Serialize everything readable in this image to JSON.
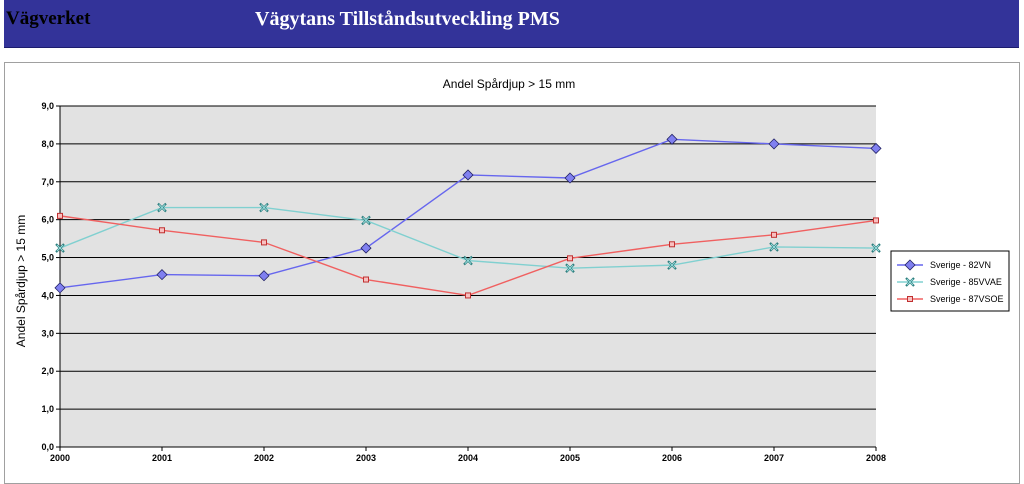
{
  "header": {
    "brand": "Vägverket",
    "title": "Vägytans Tillståndsutveckling PMS"
  },
  "colors": {
    "header_bg": "#333399",
    "plot_bg": "#e2e2e2"
  },
  "chart_data": {
    "type": "line",
    "title": "Andel Spårdjup > 15 mm",
    "xlabel": "",
    "ylabel": "Andel Spårdjup > 15 mm",
    "ylim": [
      0,
      9
    ],
    "y_ticks": [
      "0,0",
      "1,0",
      "2,0",
      "3,0",
      "4,0",
      "5,0",
      "6,0",
      "7,0",
      "8,0",
      "9,0"
    ],
    "grid": true,
    "legend_position": "right",
    "categories": [
      "2000",
      "2001",
      "2002",
      "2003",
      "2004",
      "2005",
      "2006",
      "2007",
      "2008"
    ],
    "series": [
      {
        "name": "Sverige - 82VN",
        "marker": "diamond",
        "color": "#6666ee",
        "marker_color": "#8080f0",
        "values": [
          4.2,
          4.55,
          4.52,
          5.25,
          7.18,
          7.1,
          8.12,
          8.0,
          7.88
        ]
      },
      {
        "name": "Sverige - 85VVAE",
        "marker": "x",
        "color": "#80d0d0",
        "marker_color": "#2f8080",
        "values": [
          5.25,
          6.32,
          6.32,
          5.98,
          4.92,
          4.72,
          4.8,
          5.28,
          5.25
        ]
      },
      {
        "name": "Sverige - 87VSOE",
        "marker": "square",
        "color": "#f06060",
        "marker_color": "#c03030",
        "values": [
          6.1,
          5.72,
          5.4,
          4.42,
          4.0,
          4.98,
          5.35,
          5.6,
          5.98
        ]
      }
    ]
  }
}
